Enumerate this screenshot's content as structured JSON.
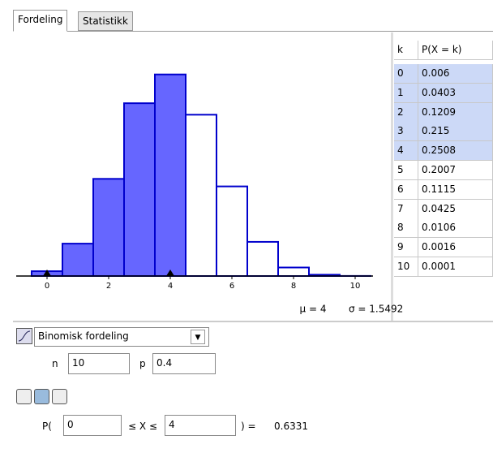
{
  "tabs": [
    "Fordeling",
    "Statistikk"
  ],
  "chart_data": {
    "type": "bar",
    "x": [
      0,
      1,
      2,
      3,
      4,
      5,
      6,
      7,
      8,
      9,
      10
    ],
    "values": [
      0.006,
      0.0403,
      0.1209,
      0.215,
      0.2508,
      0.2007,
      0.1115,
      0.0425,
      0.0106,
      0.0016,
      0.0001
    ],
    "xlim": [
      -1,
      11
    ],
    "xticks": [
      0,
      2,
      4,
      6,
      8,
      10
    ],
    "ylim": [
      0,
      0.3
    ],
    "color": "#6666ff",
    "edge_color": "#0000cc",
    "mean_label": "μ = 4",
    "sd_label": "σ = 1.5492"
  },
  "table": {
    "header": [
      "k",
      "P(X = k)"
    ]
  },
  "distribution": "Binomisk fordeling",
  "params": [
    {
      "label": "n",
      "value": "10"
    },
    {
      "label": "p",
      "value": "0.4"
    }
  ],
  "probability": {
    "prefix": "P(",
    "low": "0",
    "middle": "≤ X ≤",
    "high": "4",
    "suffix": ") =",
    "result": "0.6331"
  }
}
